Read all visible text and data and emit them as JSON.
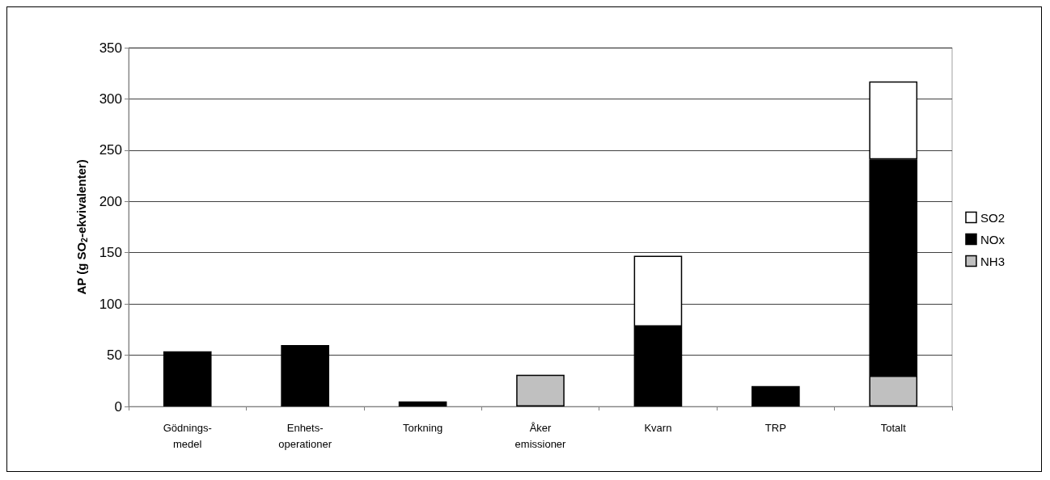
{
  "chart_data": {
    "type": "bar",
    "stacked": true,
    "ylabel": "AP (g SO$_{2}$-ekvivalenter)",
    "categories": [
      "Gödnings-\nmedel",
      "Enhets-\noperationer",
      "Torkning",
      "Åker\nemissioner",
      "Kvarn",
      "TRP",
      "Totalt"
    ],
    "series": [
      {
        "name": "NH3",
        "color": "#c0c0c0",
        "values": [
          null,
          null,
          null,
          31,
          null,
          null,
          30
        ]
      },
      {
        "name": "NOx",
        "color": "#000000",
        "values": [
          54,
          60,
          5,
          null,
          78,
          20,
          211
        ]
      },
      {
        "name": "SO2",
        "color": "#ffffff",
        "values": [
          2,
          null,
          null,
          null,
          69,
          null,
          76
        ]
      }
    ],
    "ylim": [
      0,
      350
    ],
    "yticks": [
      0,
      50,
      100,
      150,
      200,
      250,
      300,
      350
    ],
    "grid": "y",
    "legend": "right"
  }
}
